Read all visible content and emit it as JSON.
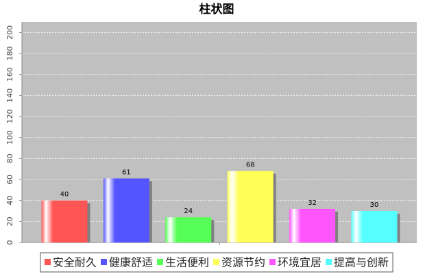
{
  "chart_data": {
    "type": "bar",
    "title": "柱状图",
    "categories": [
      null
    ],
    "series": [
      {
        "name": "安全耐久",
        "color": "#ff5555",
        "values": [
          40
        ]
      },
      {
        "name": "健康舒适",
        "color": "#5555ff",
        "values": [
          61
        ]
      },
      {
        "name": "生活便利",
        "color": "#55ff55",
        "values": [
          24
        ]
      },
      {
        "name": "资源节约",
        "color": "#ffff55",
        "values": [
          68
        ]
      },
      {
        "name": "环境宜居",
        "color": "#ff55ff",
        "values": [
          32
        ]
      },
      {
        "name": "提高与创新",
        "color": "#55ffff",
        "values": [
          30
        ]
      }
    ],
    "ylim": [
      0,
      210
    ],
    "yticks": [
      0,
      20,
      40,
      60,
      80,
      100,
      120,
      140,
      160,
      180,
      200
    ],
    "grid": true,
    "legend": "bottom"
  }
}
